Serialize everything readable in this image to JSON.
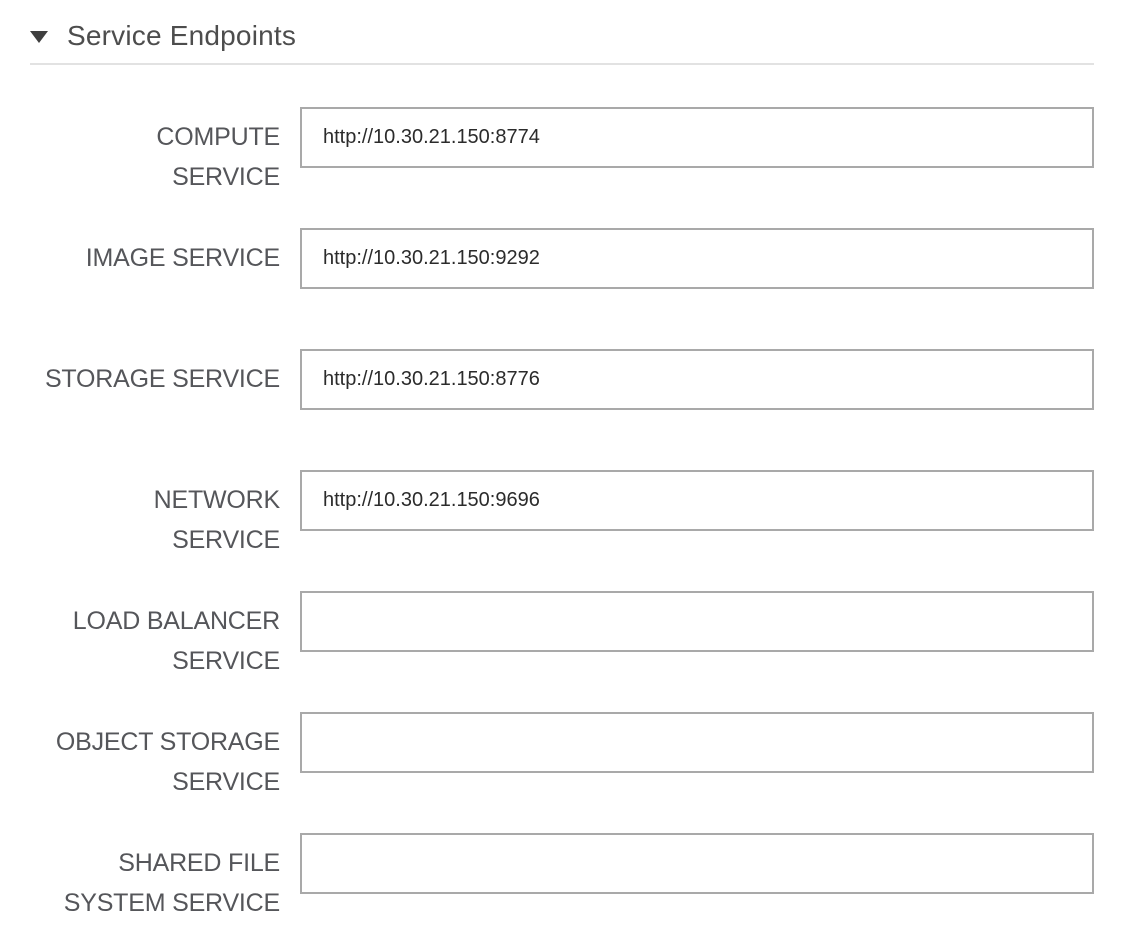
{
  "section": {
    "title": "Service Endpoints",
    "collapsed": false,
    "collapse_icon": "caret-down-icon"
  },
  "colors": {
    "section_title": "#4d4d4d",
    "caret": "#3f3f3f",
    "label_text": "#55565a",
    "input_text": "#2b2b2b",
    "input_border": "#a9a9a9",
    "divider": "#e2e2e2",
    "background": "#ffffff"
  },
  "fields": [
    {
      "id": "compute-service",
      "label": "COMPUTE SERVICE",
      "label_lines": [
        "COMPUTE",
        "SERVICE"
      ],
      "value": "http://10.30.21.150:8774"
    },
    {
      "id": "image-service",
      "label": "IMAGE SERVICE",
      "label_lines": [
        "IMAGE SERVICE"
      ],
      "value": "http://10.30.21.150:9292"
    },
    {
      "id": "storage-service",
      "label": "STORAGE SERVICE",
      "label_lines": [
        "STORAGE SERVICE"
      ],
      "value": "http://10.30.21.150:8776"
    },
    {
      "id": "network-service",
      "label": "NETWORK SERVICE",
      "label_lines": [
        "NETWORK",
        "SERVICE"
      ],
      "value": "http://10.30.21.150:9696"
    },
    {
      "id": "load-balancer-service",
      "label": "LOAD BALANCER SERVICE",
      "label_lines": [
        "LOAD BALANCER",
        "SERVICE"
      ],
      "value": ""
    },
    {
      "id": "object-storage-service",
      "label": "OBJECT STORAGE SERVICE",
      "label_lines": [
        "OBJECT STORAGE",
        "SERVICE"
      ],
      "value": ""
    },
    {
      "id": "shared-file-system-service",
      "label": "SHARED FILE SYSTEM SERVICE",
      "label_lines": [
        "SHARED FILE",
        "SYSTEM SERVICE"
      ],
      "value": ""
    }
  ]
}
